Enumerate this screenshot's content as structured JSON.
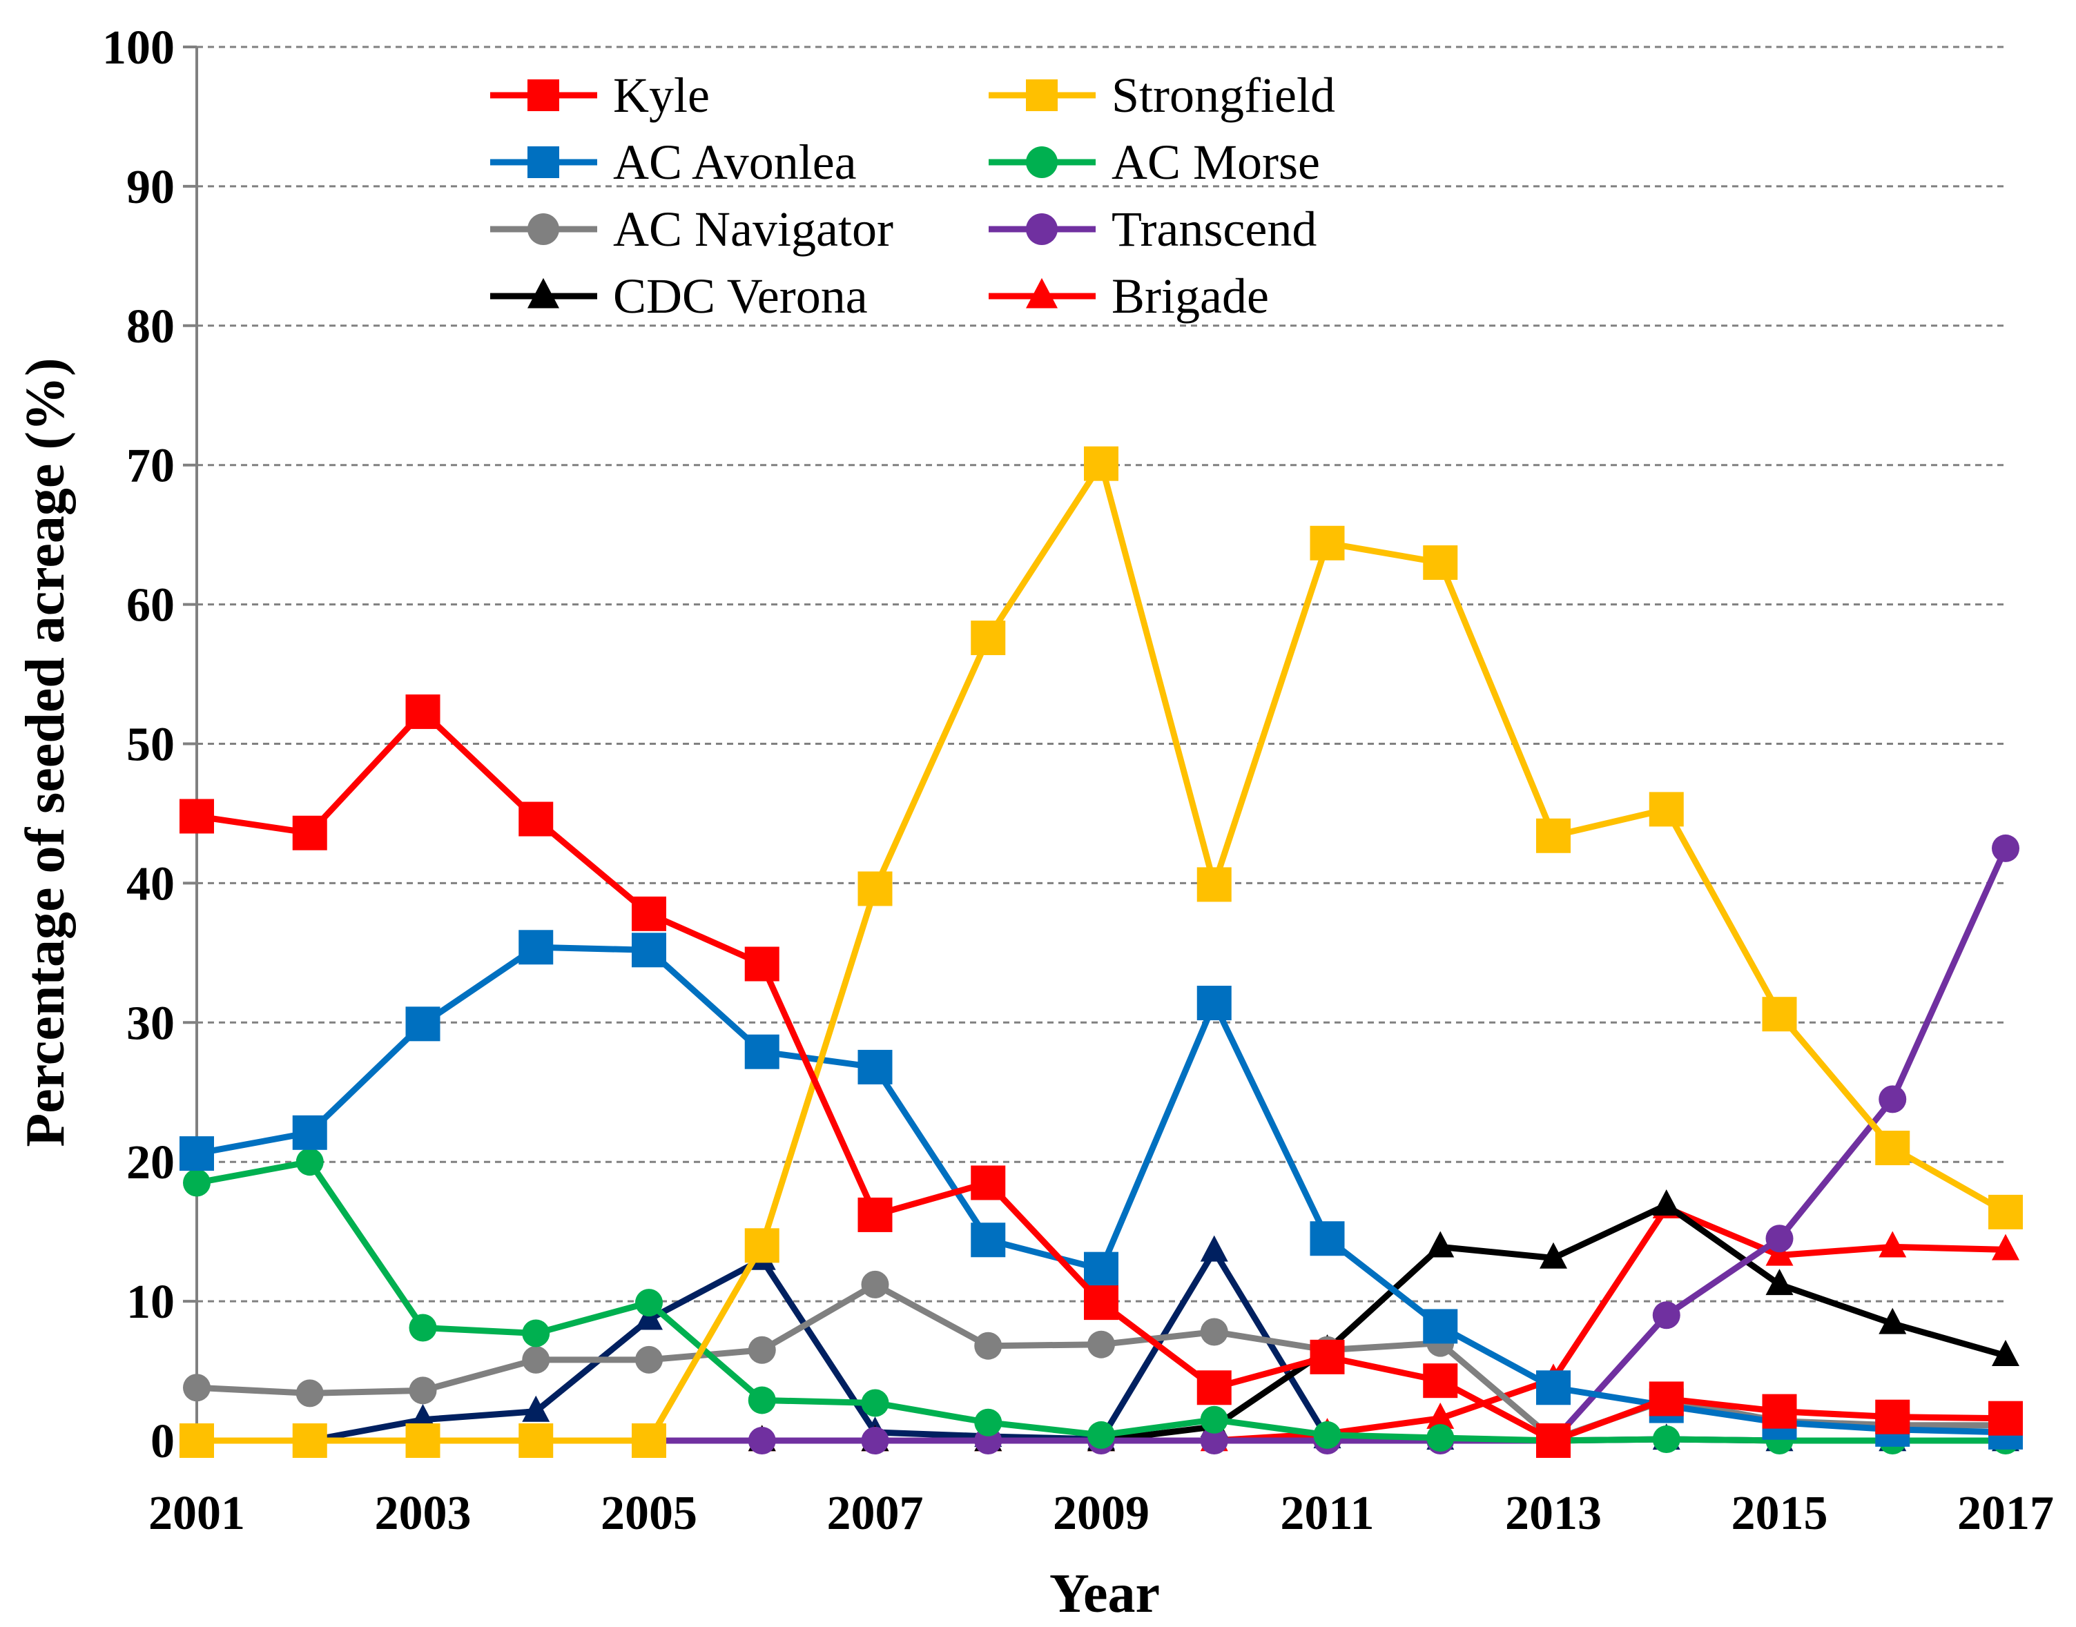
{
  "chart_data": {
    "type": "line",
    "xlabel": "Year",
    "ylabel": "Percentage of seeded acreage (%)",
    "x": [
      2001,
      2002,
      2003,
      2004,
      2005,
      2006,
      2007,
      2008,
      2009,
      2010,
      2011,
      2012,
      2013,
      2014,
      2015,
      2016,
      2017
    ],
    "x_tick_labels": [
      "2001",
      "2003",
      "2005",
      "2007",
      "2009",
      "2011",
      "2013",
      "2015",
      "2017"
    ],
    "y_tick_labels": [
      "0",
      "10",
      "20",
      "30",
      "40",
      "50",
      "60",
      "70",
      "80",
      "90",
      "100"
    ],
    "xlim": [
      2001,
      2017
    ],
    "ylim": [
      0,
      100
    ],
    "grid": "horizontal dashed",
    "legend_position": "top-center",
    "series": [
      {
        "name": "Kyle",
        "color": "#ff0000",
        "marker": "square",
        "values": [
          44.8,
          43.6,
          52.3,
          44.6,
          37.8,
          34.2,
          16.2,
          18.5,
          9.9,
          3.8,
          6.0,
          4.3,
          0.0,
          3.0,
          2.1,
          1.7,
          1.6
        ]
      },
      {
        "name": "Strongfield",
        "color": "#ffc000",
        "marker": "square",
        "values": [
          0,
          0,
          0,
          0,
          0,
          14.0,
          39.6,
          57.6,
          70.1,
          39.9,
          64.4,
          63.0,
          43.4,
          45.3,
          30.6,
          21.0,
          16.4
        ]
      },
      {
        "name": "AC Avonlea",
        "color": "#0070c0",
        "marker": "square",
        "values": [
          20.6,
          22.1,
          29.9,
          35.4,
          35.2,
          27.9,
          26.8,
          14.4,
          12.3,
          31.4,
          14.5,
          8.2,
          3.8,
          2.5,
          1.3,
          0.8,
          0.6
        ]
      },
      {
        "name": "AC Morse",
        "color": "#00b050",
        "marker": "circle",
        "values": [
          18.5,
          20.0,
          8.1,
          7.7,
          9.9,
          2.9,
          2.7,
          1.3,
          0.4,
          1.5,
          0.4,
          0.2,
          0.0,
          0.1,
          0.0,
          0.0,
          0.0
        ]
      },
      {
        "name": "AC Navigator",
        "color": "#808080",
        "marker": "circle",
        "values": [
          3.8,
          3.4,
          3.6,
          5.8,
          5.8,
          6.5,
          11.2,
          6.8,
          6.9,
          7.8,
          6.5,
          7.0,
          0.1,
          2.9,
          1.4,
          1.1,
          1.1
        ]
      },
      {
        "name": "Transcend",
        "color": "#7030a0",
        "marker": "circle",
        "values": [
          0,
          0,
          0,
          0,
          0,
          0,
          0,
          0,
          0,
          0,
          0,
          0,
          0,
          9.0,
          14.5,
          24.5,
          42.5
        ]
      },
      {
        "name": "CDC Verona",
        "color": "#000000",
        "marker": "triangle",
        "values": [
          0,
          0,
          0,
          0,
          0,
          0,
          0,
          0,
          0,
          1.0,
          6.5,
          13.9,
          13.1,
          16.9,
          11.2,
          8.4,
          6.1
        ]
      },
      {
        "name": "Brigade",
        "color": "#ff0000",
        "marker": "triangle",
        "values": [
          0,
          0,
          0,
          0,
          0,
          0,
          0,
          0,
          0,
          0,
          0.5,
          1.6,
          4.4,
          16.7,
          13.3,
          13.9,
          13.7
        ]
      },
      {
        "name": "",
        "color": "#002060",
        "marker": "triangle",
        "values": [
          0,
          0,
          1.5,
          2.1,
          8.7,
          13.0,
          0.6,
          0.3,
          0.1,
          13.6,
          0.2,
          0.1,
          0.0,
          0.1,
          0.0,
          0.0,
          0.0
        ]
      }
    ]
  }
}
